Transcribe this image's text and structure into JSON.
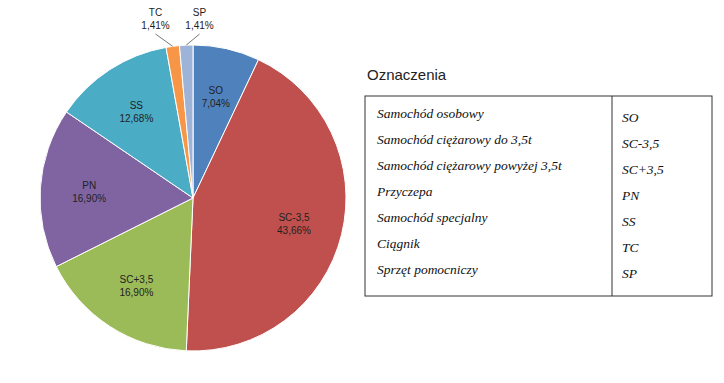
{
  "chart_data": {
    "type": "pie",
    "categories": [
      "SO",
      "SC-3,5",
      "SC+3,5",
      "PN",
      "SS",
      "TC",
      "SP"
    ],
    "values": [
      7.04,
      43.66,
      16.9,
      16.9,
      12.68,
      1.41,
      1.41
    ],
    "value_labels": [
      "7,04%",
      "43,66%",
      "16,90%",
      "16,90%",
      "12,68%",
      "1,41%",
      "1,41%"
    ],
    "colors": [
      "#4f81bd",
      "#c0504d",
      "#9bbb59",
      "#8064a2",
      "#4bacc6",
      "#f79646",
      "#9eb3d8"
    ],
    "data_labels": true,
    "legend_title": "Oznaczenia",
    "legend_labels": [
      "Samochód osobowy",
      "Samochód ciężarowy do 3,5t",
      "Samochód ciężarowy powyżej 3,5t",
      "Przyczepa",
      "Samochód specjalny",
      "Ciągnik",
      "Sprzęt pomocniczy"
    ]
  }
}
